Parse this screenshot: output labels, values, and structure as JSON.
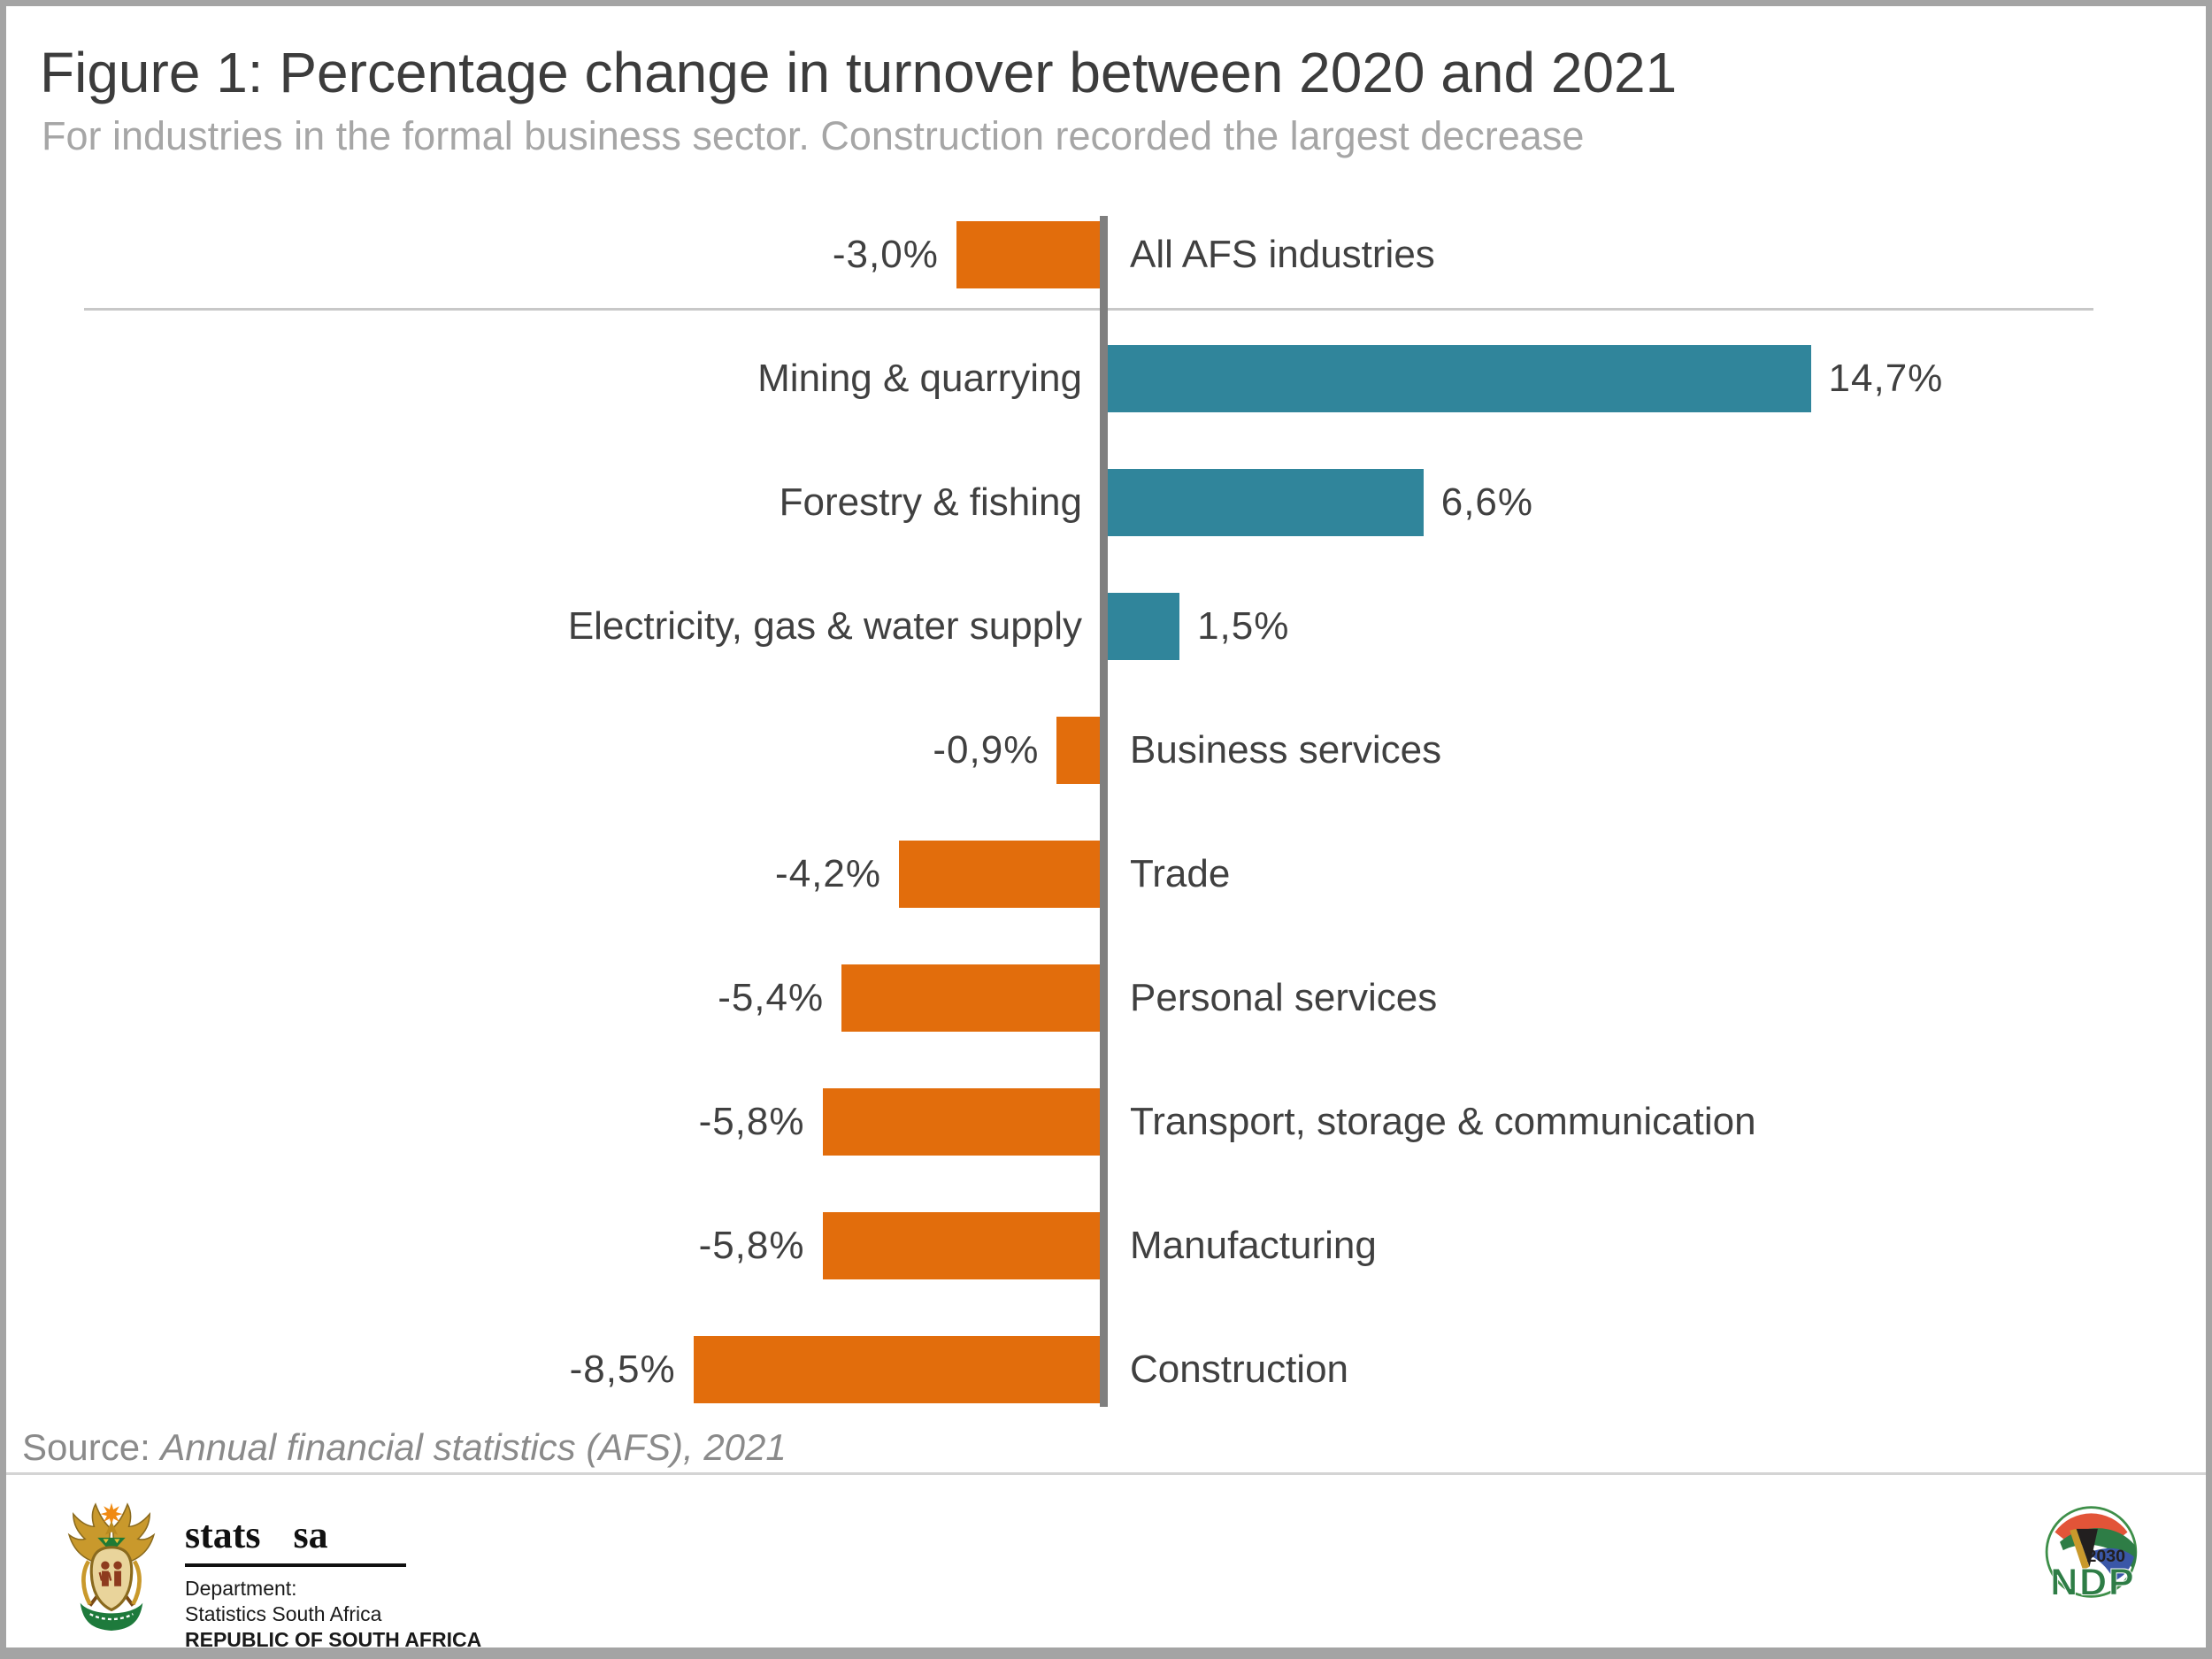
{
  "header": {
    "title": "Figure 1: Percentage change in turnover between 2020 and 2021",
    "subtitle": "For industries in the formal business sector. Construction recorded the largest decrease"
  },
  "chart_data": {
    "type": "bar",
    "orientation": "horizontal",
    "diverging": true,
    "unit": "%",
    "decimal_separator": ",",
    "categories": [
      "All AFS industries",
      "Mining & quarrying",
      "Forestry & fishing",
      "Electricity, gas & water supply",
      "Business services",
      "Trade",
      "Personal services",
      "Transport, storage & communication",
      "Manufacturing",
      "Construction"
    ],
    "values": [
      -3.0,
      14.7,
      6.6,
      1.5,
      -0.9,
      -4.2,
      -5.4,
      -5.8,
      -5.8,
      -8.5
    ],
    "value_labels": [
      "-3,0%",
      "14,7%",
      "6,6%",
      "1,5%",
      "-0,9%",
      "-4,2%",
      "-5,4%",
      "-5,8%",
      "-5,8%",
      "-8,5%"
    ],
    "positive_color": "#30859B",
    "negative_color": "#E26D0C",
    "axis_color": "#7f7f7f",
    "xlim": [
      -10,
      16
    ],
    "separator_after_index": 0,
    "legend": "none",
    "gridlines": "off",
    "title": "Figure 1: Percentage change in turnover between 2020 and 2021",
    "subtitle": "For industries in the formal business sector. Construction recorded the largest decrease"
  },
  "source": {
    "prefix": "Source:",
    "text": "Annual financial statistics (AFS), 2021"
  },
  "footer": {
    "statssa": {
      "name": "stats sa",
      "dept_line1": "Department:",
      "dept_line2": "Statistics South Africa",
      "dept_line3": "REPUBLIC OF SOUTH AFRICA"
    },
    "ndp": {
      "year": "2030",
      "name": "NDP"
    }
  }
}
